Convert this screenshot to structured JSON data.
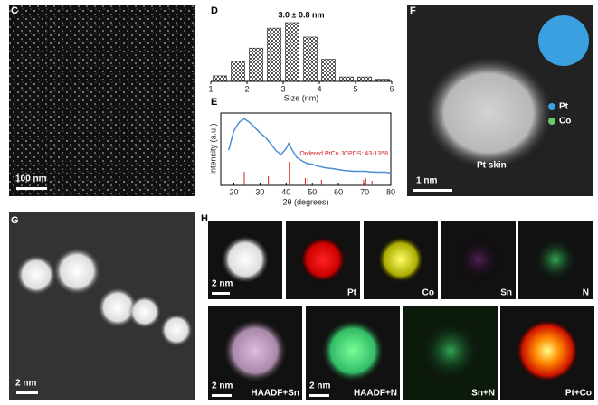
{
  "panels": {
    "C": {
      "label": "C",
      "scale_bar": "100 nm"
    },
    "F": {
      "label": "F",
      "legend": [
        "Pt",
        "Co"
      ],
      "annotation": "Pt skin",
      "scale_bar": "1 nm"
    },
    "G": {
      "label": "G",
      "scale_bar": "2 nm"
    },
    "H": {
      "label": "H",
      "row1": [
        "2 nm",
        "Pt",
        "Co",
        "Sn",
        "N"
      ],
      "row2_scale": [
        "2 nm",
        "2 nm"
      ],
      "row2": [
        "HAADF+Sn",
        "HAADF+N",
        "Sn+N",
        "Pt+Co"
      ]
    }
  },
  "chart_data": [
    {
      "type": "histogram",
      "panel": "D",
      "title": "3.0 ± 0.8 nm",
      "xlabel": "Size (nm)",
      "bins": [
        1,
        1.5,
        2,
        2.5,
        3,
        3.5,
        4,
        4.5,
        5,
        5.5,
        6
      ],
      "values": [
        5,
        18,
        30,
        48,
        53,
        40,
        20,
        4,
        4,
        2
      ],
      "xlim": [
        1,
        6
      ],
      "xticks": [
        1,
        2,
        3,
        4,
        5,
        6
      ],
      "color": "#9a9a9a"
    },
    {
      "type": "line",
      "panel": "E",
      "xlabel": "2θ (degrees)",
      "ylabel": "Intensity (a.u.)",
      "xlim": [
        15,
        80
      ],
      "xticks": [
        20,
        30,
        40,
        50,
        60,
        70,
        80
      ],
      "series": [
        {
          "name": "PtCo",
          "color": "#4a8fd4",
          "x": [
            18,
            20,
            22,
            24,
            26,
            28,
            30,
            32,
            34,
            36,
            38,
            40,
            41,
            42,
            44,
            46,
            48,
            50,
            52,
            55,
            58,
            62,
            66,
            70,
            74,
            78,
            80
          ],
          "values": [
            40,
            62,
            72,
            76,
            72,
            66,
            60,
            55,
            48,
            40,
            35,
            42,
            48,
            42,
            32,
            28,
            25,
            24,
            22,
            20,
            19,
            17,
            16,
            16,
            15,
            15,
            14
          ]
        },
        {
          "name": "Ordered PtCo JCPDS: 43-1358",
          "color": "#d42020",
          "x": [
            24,
            33.2,
            41.2,
            47.3,
            48.3,
            53.5,
            59.4,
            69.6,
            70.4,
            72.8
          ],
          "values": [
            15,
            10,
            26,
            8,
            8,
            6,
            5,
            6,
            8,
            5
          ]
        }
      ]
    }
  ]
}
